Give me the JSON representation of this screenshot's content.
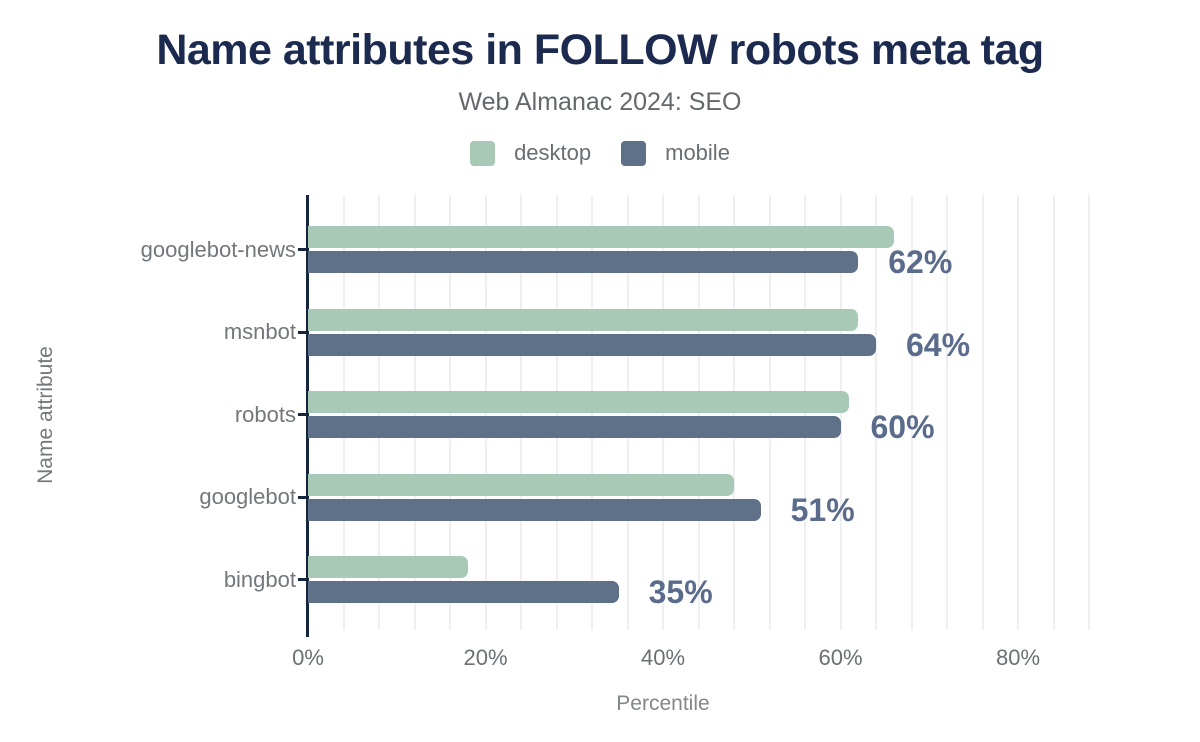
{
  "title": "Name attributes in FOLLOW robots meta tag",
  "subtitle": "Web Almanac 2024: SEO",
  "legend": {
    "items": [
      {
        "label": "desktop",
        "color": "#a8c9b6"
      },
      {
        "label": "mobile",
        "color": "#5f7089"
      }
    ]
  },
  "chart_data": {
    "type": "bar",
    "orientation": "horizontal",
    "title": "Name attributes in FOLLOW robots meta tag",
    "subtitle": "Web Almanac 2024: SEO",
    "xlabel": "Percentile",
    "ylabel": "Name attribute",
    "categories": [
      "googlebot-news",
      "msnbot",
      "robots",
      "googlebot",
      "bingbot"
    ],
    "series": [
      {
        "name": "desktop",
        "color": "#a8c9b6",
        "values": [
          66,
          62,
          61,
          48,
          18
        ]
      },
      {
        "name": "mobile",
        "color": "#5f7089",
        "values": [
          62,
          64,
          60,
          51,
          35
        ],
        "data_labels": [
          "62%",
          "64%",
          "60%",
          "51%",
          "35%"
        ]
      }
    ],
    "x_ticks": [
      {
        "value": 0,
        "label": "0%"
      },
      {
        "value": 20,
        "label": "20%"
      },
      {
        "value": 40,
        "label": "40%"
      },
      {
        "value": 60,
        "label": "60%"
      },
      {
        "value": 80,
        "label": "80%"
      }
    ],
    "xlim": [
      0,
      89.6
    ],
    "grid_step": 4,
    "grid": true,
    "legend_position": "top"
  },
  "colors": {
    "background": "#ffffff",
    "title": "#1b2a4e",
    "axis_line": "#16253e",
    "data_label": "#5a6b8c",
    "gridline": "#edeff2",
    "muted_text": "#696e73"
  }
}
